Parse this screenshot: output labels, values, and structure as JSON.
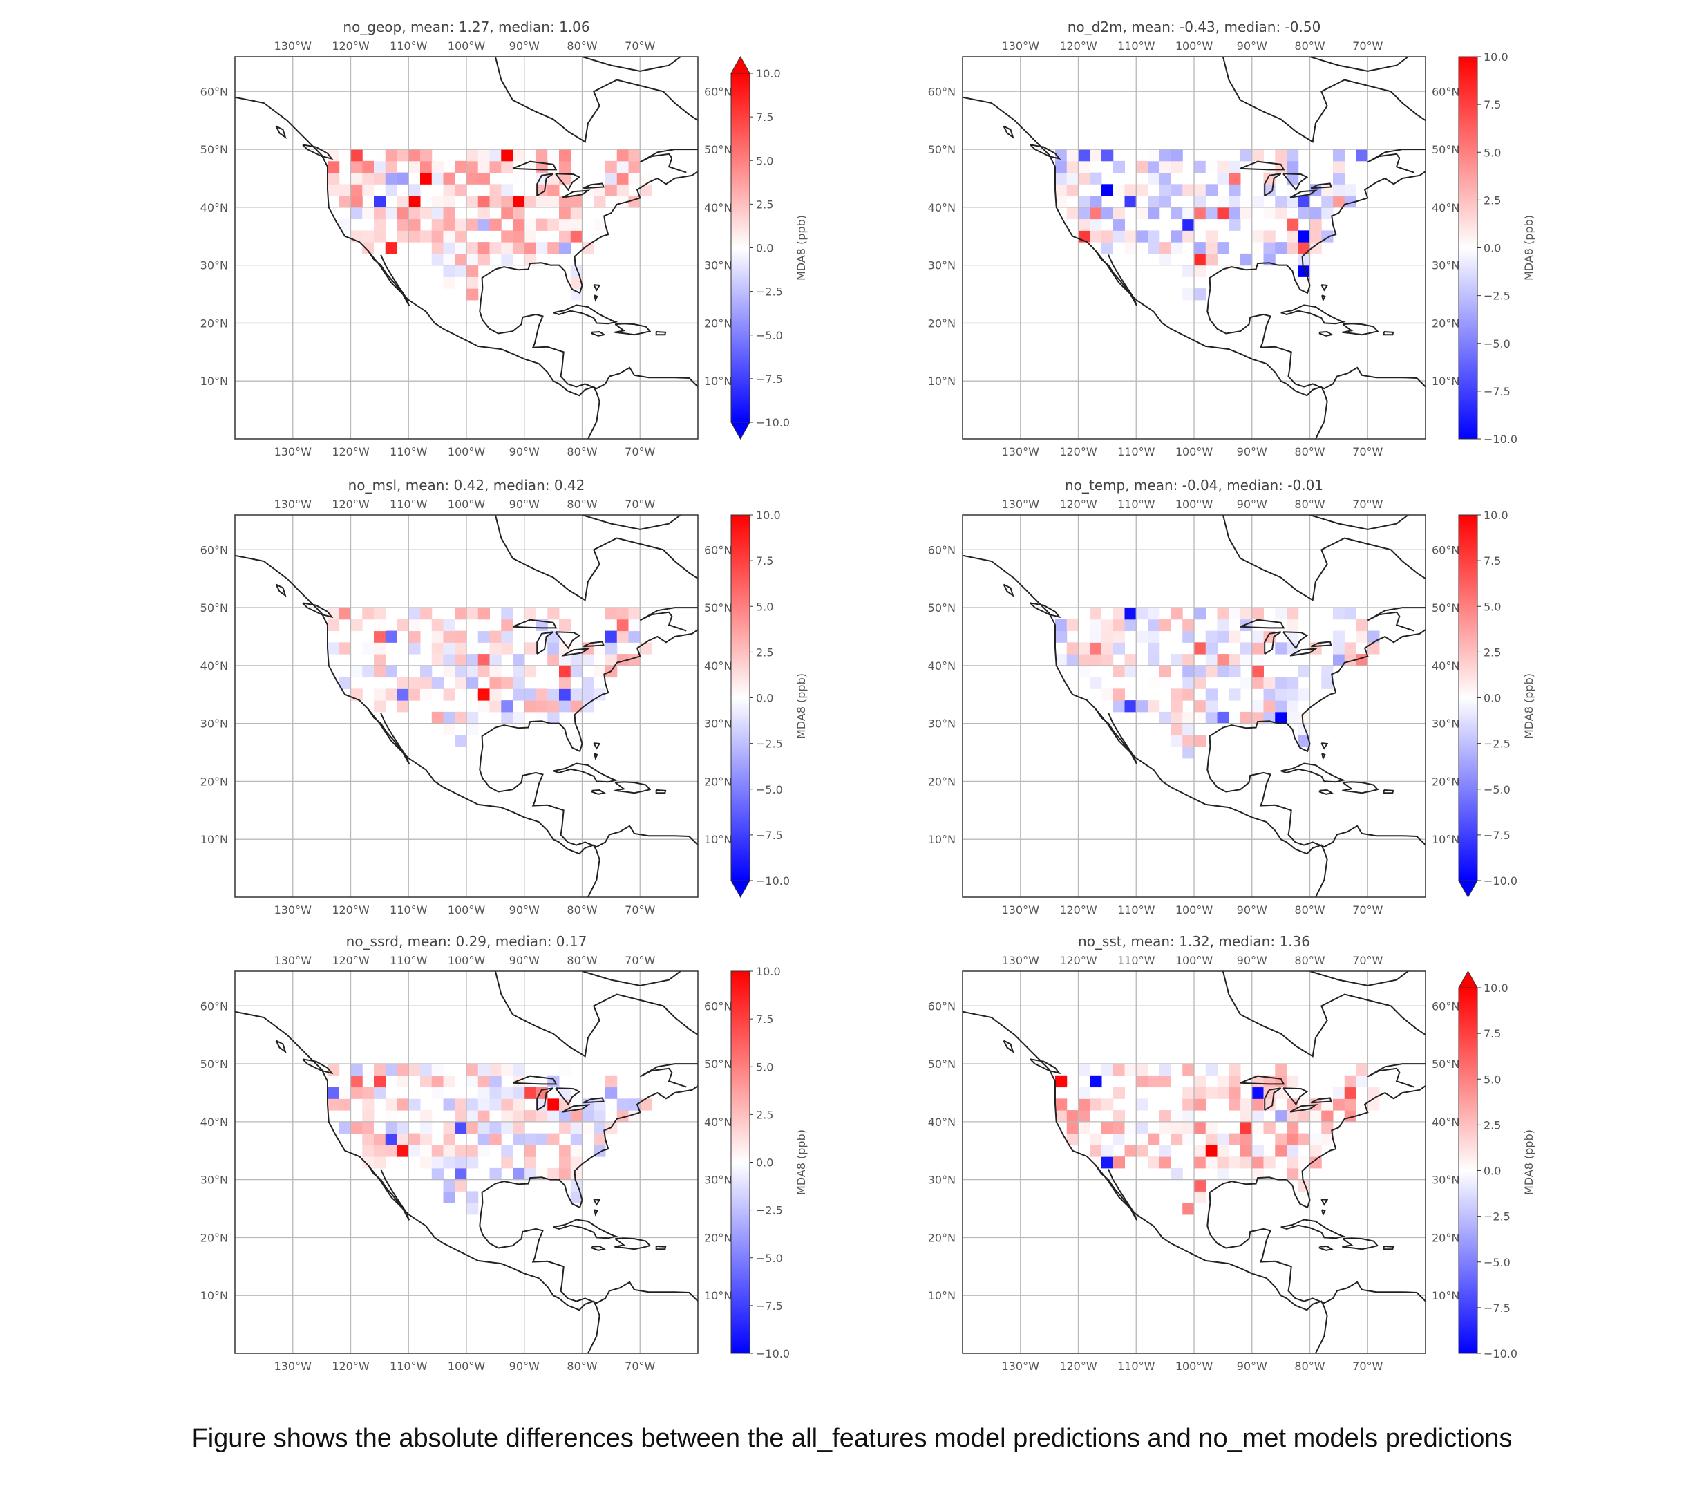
{
  "caption": "Figure shows the absolute differences between the all_features model predictions and no_met models predictions",
  "colors": {
    "neg": "#0000ff",
    "mid": "#ffffff",
    "pos": "#ff0000",
    "coast": "#222222",
    "grid": "#b8b8b8",
    "axis_text": "#555555"
  },
  "chart_data": [
    {
      "type": "heatmap",
      "title": "no_geop,  mean: 1.27,  median: 1.06",
      "colorbar_label": "MDA8 (ppb)",
      "colorbar_ticks": [
        "10.0",
        "7.5",
        "5.0",
        "2.5",
        "0.0",
        "−2.5",
        "−5.0",
        "−7.5",
        "−10.0"
      ],
      "extend": "both",
      "bias": 1.27,
      "seed": 11,
      "lon_ticks": [
        "130°W",
        "120°W",
        "110°W",
        "100°W",
        "90°W",
        "80°W",
        "70°W"
      ],
      "lat_ticks": [
        "60°N",
        "50°N",
        "40°N",
        "30°N",
        "20°N",
        "10°N"
      ],
      "lon_range": [
        -140,
        -60
      ],
      "lat_range": [
        0,
        66
      ],
      "vmin": -10,
      "vmax": 10
    },
    {
      "type": "heatmap",
      "title": "no_d2m,  mean: -0.43,  median: -0.50",
      "colorbar_label": "MDA8 (ppb)",
      "colorbar_ticks": [
        "10.0",
        "7.5",
        "5.0",
        "2.5",
        "0.0",
        "−2.5",
        "−5.0",
        "−7.5",
        "−10.0"
      ],
      "extend": "neither",
      "bias": -0.43,
      "seed": 23,
      "lon_ticks": [
        "130°W",
        "120°W",
        "110°W",
        "100°W",
        "90°W",
        "80°W",
        "70°W"
      ],
      "lat_ticks": [
        "60°N",
        "50°N",
        "40°N",
        "30°N",
        "20°N",
        "10°N"
      ],
      "lon_range": [
        -140,
        -60
      ],
      "lat_range": [
        0,
        66
      ],
      "vmin": -10,
      "vmax": 10
    },
    {
      "type": "heatmap",
      "title": "no_msl,  mean: 0.42,  median: 0.42",
      "colorbar_label": "MDA8 (ppb)",
      "colorbar_ticks": [
        "10.0",
        "7.5",
        "5.0",
        "2.5",
        "0.0",
        "−2.5",
        "−5.0",
        "−7.5",
        "−10.0"
      ],
      "extend": "min",
      "bias": 0.42,
      "seed": 37,
      "lon_ticks": [
        "130°W",
        "120°W",
        "110°W",
        "100°W",
        "90°W",
        "80°W",
        "70°W"
      ],
      "lat_ticks": [
        "60°N",
        "50°N",
        "40°N",
        "30°N",
        "20°N",
        "10°N"
      ],
      "lon_range": [
        -140,
        -60
      ],
      "lat_range": [
        0,
        66
      ],
      "vmin": -10,
      "vmax": 10
    },
    {
      "type": "heatmap",
      "title": "no_temp,  mean: -0.04,  median: -0.01",
      "colorbar_label": "MDA8 (ppb)",
      "colorbar_ticks": [
        "10.0",
        "7.5",
        "5.0",
        "2.5",
        "0.0",
        "−2.5",
        "−5.0",
        "−7.5",
        "−10.0"
      ],
      "extend": "min",
      "bias": -0.04,
      "seed": 41,
      "lon_ticks": [
        "130°W",
        "120°W",
        "110°W",
        "100°W",
        "90°W",
        "80°W",
        "70°W"
      ],
      "lat_ticks": [
        "60°N",
        "50°N",
        "40°N",
        "30°N",
        "20°N",
        "10°N"
      ],
      "lon_range": [
        -140,
        -60
      ],
      "lat_range": [
        0,
        66
      ],
      "vmin": -10,
      "vmax": 10
    },
    {
      "type": "heatmap",
      "title": "no_ssrd,  mean: 0.29,  median: 0.17",
      "colorbar_label": "MDA8 (ppb)",
      "colorbar_ticks": [
        "10.0",
        "7.5",
        "5.0",
        "2.5",
        "0.0",
        "−2.5",
        "−5.0",
        "−7.5",
        "−10.0"
      ],
      "extend": "neither",
      "bias": 0.29,
      "seed": 53,
      "lon_ticks": [
        "130°W",
        "120°W",
        "110°W",
        "100°W",
        "90°W",
        "80°W",
        "70°W"
      ],
      "lat_ticks": [
        "60°N",
        "50°N",
        "40°N",
        "30°N",
        "20°N",
        "10°N"
      ],
      "lon_range": [
        -140,
        -60
      ],
      "lat_range": [
        0,
        66
      ],
      "vmin": -10,
      "vmax": 10
    },
    {
      "type": "heatmap",
      "title": "no_sst,  mean: 1.32,  median: 1.36",
      "colorbar_label": "MDA8 (ppb)",
      "colorbar_ticks": [
        "10.0",
        "7.5",
        "5.0",
        "2.5",
        "0.0",
        "−2.5",
        "−5.0",
        "−7.5",
        "−10.0"
      ],
      "extend": "max",
      "bias": 1.32,
      "seed": 67,
      "lon_ticks": [
        "130°W",
        "120°W",
        "110°W",
        "100°W",
        "90°W",
        "80°W",
        "70°W"
      ],
      "lat_ticks": [
        "60°N",
        "50°N",
        "40°N",
        "30°N",
        "20°N",
        "10°N"
      ],
      "lon_range": [
        -140,
        -60
      ],
      "lat_range": [
        0,
        66
      ],
      "vmin": -10,
      "vmax": 10
    }
  ]
}
